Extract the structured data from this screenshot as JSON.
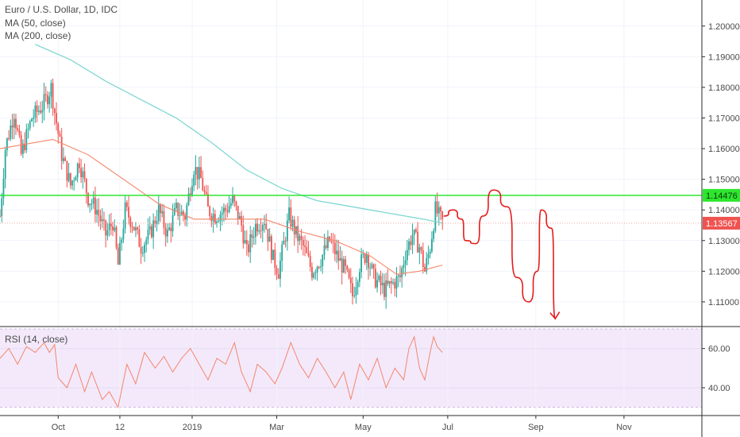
{
  "legend": {
    "symbol": "Euro / U.S. Dollar, 1D, IDC",
    "ma50": "MA (50, close)",
    "ma200": "MA (200, close)"
  },
  "rsi_title": "RSI (14, close)",
  "colors": {
    "up": "#26a69a",
    "down": "#ef5350",
    "ma50": "#f4866a",
    "ma200": "#7fd7d0",
    "hline": "#2ee62e",
    "last": "#ef5350",
    "drawing": "#e51c1c",
    "rsi": "#f4866a",
    "rsi_band": "#f3e9fb"
  },
  "chart_data": [
    {
      "type": "candlestick",
      "title": "Euro / U.S. Dollar, 1D, IDC",
      "ylim": [
        1.1022,
        1.2085
      ],
      "y_ticks": [
        "1.20000",
        "1.19000",
        "1.18000",
        "1.17000",
        "1.16000",
        "1.15000",
        "1.14000",
        "1.13000",
        "1.12000",
        "1.11000"
      ],
      "x_ticks": [
        "Oct",
        "12",
        "2019",
        "Mar",
        "May",
        "Jul",
        "Sep",
        "Nov"
      ],
      "horizontal_line": {
        "value": 1.14476,
        "label": "1.14476"
      },
      "last_price": {
        "value": 1.13567,
        "label": "1.13567"
      },
      "anchors": [
        [
          0,
          1.138
        ],
        [
          3,
          1.16
        ],
        [
          8,
          1.172
        ],
        [
          12,
          1.158
        ],
        [
          18,
          1.17
        ],
        [
          24,
          1.174
        ],
        [
          26,
          1.176
        ],
        [
          29,
          1.18
        ],
        [
          31,
          1.172
        ],
        [
          35,
          1.158
        ],
        [
          40,
          1.148
        ],
        [
          45,
          1.156
        ],
        [
          50,
          1.144
        ],
        [
          55,
          1.14
        ],
        [
          60,
          1.132
        ],
        [
          64,
          1.136
        ],
        [
          67,
          1.122
        ],
        [
          71,
          1.14
        ],
        [
          75,
          1.136
        ],
        [
          80,
          1.128
        ],
        [
          85,
          1.132
        ],
        [
          90,
          1.14
        ],
        [
          95,
          1.132
        ],
        [
          100,
          1.14
        ],
        [
          105,
          1.138
        ],
        [
          110,
          1.154
        ],
        [
          114,
          1.15
        ],
        [
          118,
          1.14
        ],
        [
          122,
          1.138
        ],
        [
          128,
          1.14
        ],
        [
          132,
          1.143
        ],
        [
          137,
          1.135
        ],
        [
          140,
          1.126
        ],
        [
          145,
          1.135
        ],
        [
          150,
          1.137
        ],
        [
          155,
          1.124
        ],
        [
          158,
          1.12
        ],
        [
          164,
          1.138
        ],
        [
          168,
          1.132
        ],
        [
          172,
          1.128
        ],
        [
          177,
          1.12
        ],
        [
          182,
          1.124
        ],
        [
          187,
          1.13
        ],
        [
          192,
          1.124
        ],
        [
          196,
          1.12
        ],
        [
          200,
          1.112
        ],
        [
          204,
          1.122
        ],
        [
          208,
          1.126
        ],
        [
          212,
          1.118
        ],
        [
          218,
          1.114
        ],
        [
          223,
          1.116
        ],
        [
          227,
          1.118
        ],
        [
          230,
          1.126
        ],
        [
          234,
          1.132
        ],
        [
          238,
          1.128
        ],
        [
          241,
          1.12
        ],
        [
          244,
          1.128
        ],
        [
          247,
          1.14
        ],
        [
          249,
          1.138
        ],
        [
          251,
          1.136
        ]
      ],
      "ma50": [
        [
          0,
          1.16
        ],
        [
          30,
          1.163
        ],
        [
          50,
          1.158
        ],
        [
          70,
          1.15
        ],
        [
          90,
          1.142
        ],
        [
          110,
          1.137
        ],
        [
          130,
          1.137
        ],
        [
          150,
          1.137
        ],
        [
          170,
          1.133
        ],
        [
          190,
          1.13
        ],
        [
          210,
          1.125
        ],
        [
          225,
          1.119
        ],
        [
          238,
          1.12
        ],
        [
          251,
          1.122
        ]
      ],
      "ma200": [
        [
          20,
          1.194
        ],
        [
          40,
          1.189
        ],
        [
          60,
          1.182
        ],
        [
          80,
          1.176
        ],
        [
          100,
          1.17
        ],
        [
          120,
          1.162
        ],
        [
          140,
          1.153
        ],
        [
          160,
          1.147
        ],
        [
          180,
          1.143
        ],
        [
          200,
          1.141
        ],
        [
          220,
          1.139
        ],
        [
          240,
          1.137
        ],
        [
          251,
          1.1357
        ]
      ],
      "projection": [
        [
          252,
          1.138
        ],
        [
          257,
          1.14
        ],
        [
          262,
          1.137
        ],
        [
          264,
          1.13
        ],
        [
          270,
          1.129
        ],
        [
          274,
          1.138
        ],
        [
          280,
          1.1465
        ],
        [
          288,
          1.141
        ],
        [
          293,
          1.118
        ],
        [
          300,
          1.11
        ],
        [
          305,
          1.12
        ],
        [
          307,
          1.14
        ],
        [
          313,
          1.134
        ],
        [
          315,
          1.1045
        ]
      ]
    },
    {
      "type": "line",
      "title": "RSI (14, close)",
      "ylim": [
        26.2,
        70.4
      ],
      "band": [
        30,
        70
      ],
      "y_ticks": [
        "60.00",
        "40.00"
      ],
      "values": [
        [
          0,
          55
        ],
        [
          5,
          60
        ],
        [
          10,
          52
        ],
        [
          15,
          61
        ],
        [
          20,
          58
        ],
        [
          25,
          63
        ],
        [
          28,
          58
        ],
        [
          31,
          62
        ],
        [
          33,
          45
        ],
        [
          38,
          40
        ],
        [
          43,
          52
        ],
        [
          48,
          38
        ],
        [
          52,
          48
        ],
        [
          58,
          34
        ],
        [
          62,
          38
        ],
        [
          67,
          30
        ],
        [
          72,
          52
        ],
        [
          77,
          42
        ],
        [
          82,
          58
        ],
        [
          88,
          50
        ],
        [
          93,
          56
        ],
        [
          98,
          48
        ],
        [
          103,
          55
        ],
        [
          108,
          60
        ],
        [
          113,
          52
        ],
        [
          118,
          44
        ],
        [
          123,
          55
        ],
        [
          128,
          52
        ],
        [
          133,
          63
        ],
        [
          137,
          48
        ],
        [
          142,
          38
        ],
        [
          146,
          52
        ],
        [
          151,
          48
        ],
        [
          156,
          42
        ],
        [
          160,
          50
        ],
        [
          165,
          63
        ],
        [
          170,
          52
        ],
        [
          175,
          45
        ],
        [
          180,
          55
        ],
        [
          185,
          48
        ],
        [
          190,
          40
        ],
        [
          195,
          48
        ],
        [
          199,
          34
        ],
        [
          204,
          52
        ],
        [
          209,
          44
        ],
        [
          214,
          55
        ],
        [
          219,
          40
        ],
        [
          224,
          50
        ],
        [
          229,
          44
        ],
        [
          232,
          60
        ],
        [
          235,
          66
        ],
        [
          238,
          50
        ],
        [
          241,
          44
        ],
        [
          244,
          58
        ],
        [
          246,
          66
        ],
        [
          248,
          61
        ],
        [
          251,
          58
        ]
      ]
    }
  ]
}
